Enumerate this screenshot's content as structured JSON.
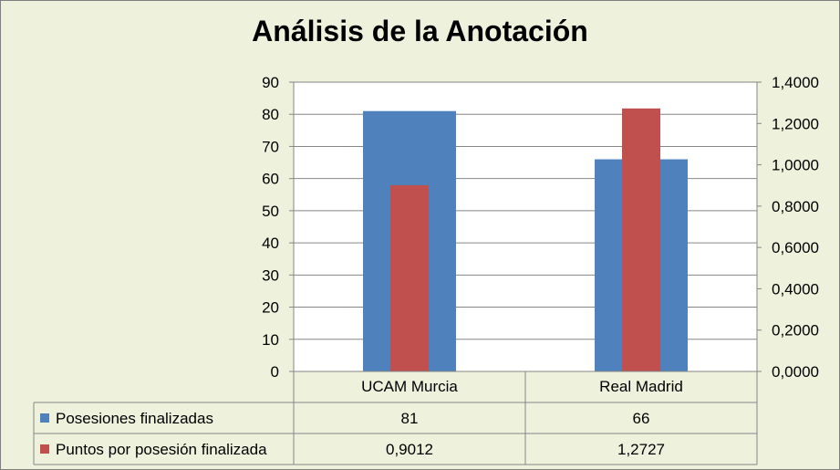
{
  "chart_data": {
    "type": "bar",
    "title": "Análisis de la Anotación",
    "categories": [
      "UCAM Murcia",
      "Real Madrid"
    ],
    "series": [
      {
        "name": "Posesiones finalizadas",
        "axis": "left",
        "values": [
          81,
          66
        ],
        "labels": [
          "81",
          "66"
        ],
        "color": "#4f81bd"
      },
      {
        "name": "Puntos por posesión finalizada",
        "axis": "right",
        "values": [
          0.9012,
          1.2727
        ],
        "labels": [
          "0,9012",
          "1,2727"
        ],
        "color": "#c0504d"
      }
    ],
    "y_left": {
      "min": 0,
      "max": 90,
      "ticks": [
        "0",
        "10",
        "20",
        "30",
        "40",
        "50",
        "60",
        "70",
        "80",
        "90"
      ]
    },
    "y_right": {
      "min": 0,
      "max": 1.4,
      "ticks": [
        "0,0000",
        "0,2000",
        "0,4000",
        "0,6000",
        "0,8000",
        "1,0000",
        "1,2000",
        "1,4000"
      ]
    },
    "grid": true,
    "legend": "data-table"
  }
}
